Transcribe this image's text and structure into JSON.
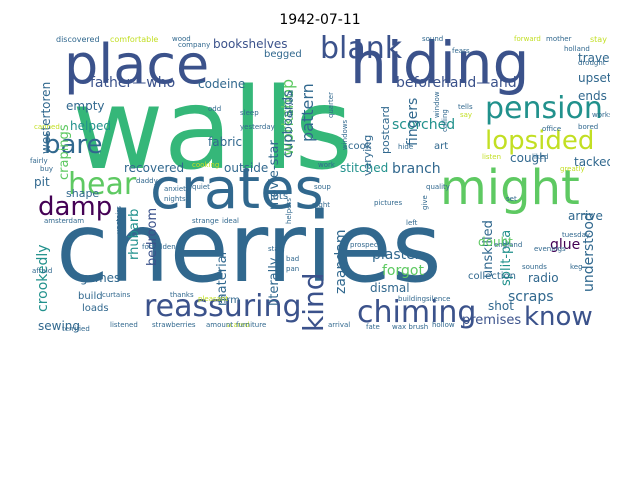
{
  "title": "1942-07-11",
  "words": [
    {
      "t": "walls",
      "c": "#35b779"
    },
    {
      "t": "cherries",
      "c": "#31688e"
    },
    {
      "t": "crates",
      "c": "#31688e"
    },
    {
      "t": "might",
      "c": "#5ec962"
    },
    {
      "t": "hiding",
      "c": "#3b528b"
    },
    {
      "t": "place",
      "c": "#3b528b"
    },
    {
      "t": "reassuring",
      "c": "#3b528b"
    },
    {
      "t": "chiming",
      "c": "#3b528b"
    },
    {
      "t": "pension",
      "c": "#21918c"
    },
    {
      "t": "blank",
      "c": "#3b528b"
    },
    {
      "t": "lopsided",
      "c": "#c2df23"
    },
    {
      "t": "hear",
      "c": "#5ec962"
    },
    {
      "t": "bare",
      "c": "#31688e"
    },
    {
      "t": "damp",
      "c": "#440154"
    },
    {
      "t": "know",
      "c": "#3b528b"
    },
    {
      "t": "kind",
      "c": "#3b528b"
    },
    {
      "t": "father—who",
      "c": "#3b528b"
    },
    {
      "t": "beforehand—and",
      "c": "#3b528b"
    },
    {
      "t": "workshop",
      "c": "#5ec962"
    },
    {
      "t": "pattern",
      "c": "#31688e"
    },
    {
      "t": "scorched",
      "c": "#21918c"
    },
    {
      "t": "branch",
      "c": "#31688e"
    },
    {
      "t": "fingers",
      "c": "#31688e"
    },
    {
      "t": "glue",
      "c": "#440154"
    },
    {
      "t": "understood",
      "c": "#31688e"
    },
    {
      "t": "scraps",
      "c": "#31688e"
    },
    {
      "t": "forgot",
      "c": "#5ec962"
    },
    {
      "t": "plaster",
      "c": "#31688e"
    },
    {
      "t": "zaandam",
      "c": "#31688e"
    },
    {
      "t": "crookedly",
      "c": "#21918c"
    },
    {
      "t": "movie-star",
      "c": "#31688e"
    },
    {
      "t": "cupboards",
      "c": "#31688e"
    },
    {
      "t": "bedroom",
      "c": "#3b528b"
    },
    {
      "t": "rhubarb",
      "c": "#21918c"
    },
    {
      "t": "material",
      "c": "#31688e"
    },
    {
      "t": "literally",
      "c": "#31688e"
    },
    {
      "t": "unskilled",
      "c": "#31688e"
    },
    {
      "t": "split-pea",
      "c": "#21918c"
    },
    {
      "t": "crapings",
      "c": "#5ec962"
    },
    {
      "t": "helped",
      "c": "#21918c"
    },
    {
      "t": "westertoren",
      "c": "#31688e"
    },
    {
      "t": "empty",
      "c": "#31688e"
    },
    {
      "t": "bookshelves",
      "c": "#3b528b"
    },
    {
      "t": "codeine",
      "c": "#31688e"
    },
    {
      "t": "fabric",
      "c": "#31688e"
    },
    {
      "t": "recovered",
      "c": "#31688e"
    },
    {
      "t": "outside",
      "c": "#31688e"
    },
    {
      "t": "stitched",
      "c": "#21918c"
    },
    {
      "t": "postcard",
      "c": "#31688e"
    },
    {
      "t": "varying",
      "c": "#31688e"
    },
    {
      "t": "travel",
      "c": "#31688e"
    },
    {
      "t": "upsets",
      "c": "#31688e"
    },
    {
      "t": "ends",
      "c": "#31688e"
    },
    {
      "t": "cough",
      "c": "#31688e"
    },
    {
      "t": "tacked",
      "c": "#31688e"
    },
    {
      "t": "arrive",
      "c": "#31688e"
    },
    {
      "t": "doubt",
      "c": "#5ec962"
    },
    {
      "t": "radio",
      "c": "#31688e"
    },
    {
      "t": "shot",
      "c": "#31688e"
    },
    {
      "t": "premises",
      "c": "#3b528b"
    },
    {
      "t": "dismal",
      "c": "#31688e"
    },
    {
      "t": "collection",
      "c": "#31688e"
    },
    {
      "t": "sewing",
      "c": "#31688e"
    },
    {
      "t": "doses",
      "c": "#21918c"
    },
    {
      "t": "games",
      "c": "#31688e"
    },
    {
      "t": "loads",
      "c": "#31688e"
    },
    {
      "t": "build",
      "c": "#31688e"
    },
    {
      "t": "firm",
      "c": "#31688e"
    },
    {
      "t": "shape",
      "c": "#31688e"
    },
    {
      "t": "pit",
      "c": "#31688e"
    },
    {
      "t": "cook",
      "c": "#31688e"
    },
    {
      "t": "art",
      "c": "#31688e"
    },
    {
      "t": "begged",
      "c": "#31688e"
    },
    {
      "t": "lots",
      "c": "#31688e"
    },
    {
      "t": "stay",
      "c": "#c2df23"
    },
    {
      "t": "discovered",
      "c": "#31688e"
    },
    {
      "t": "comfortable",
      "c": "#c2df23"
    },
    {
      "t": "wood",
      "c": "#31688e"
    },
    {
      "t": "company",
      "c": "#31688e"
    },
    {
      "t": "sound",
      "c": "#31688e"
    },
    {
      "t": "forward",
      "c": "#c2df23"
    },
    {
      "t": "mother",
      "c": "#31688e"
    },
    {
      "t": "works",
      "c": "#31688e"
    },
    {
      "t": "sleep",
      "c": "#31688e"
    },
    {
      "t": "nervous",
      "c": "#31688e"
    },
    {
      "t": "quarter",
      "c": "#31688e"
    },
    {
      "t": "window",
      "c": "#31688e"
    },
    {
      "t": "calling",
      "c": "#31688e"
    },
    {
      "t": "hide",
      "c": "#31688e"
    },
    {
      "t": "windows",
      "c": "#31688e"
    },
    {
      "t": "tells",
      "c": "#31688e"
    },
    {
      "t": "say",
      "c": "#c2df23"
    },
    {
      "t": "office",
      "c": "#31688e"
    },
    {
      "t": "bored",
      "c": "#31688e"
    },
    {
      "t": "listen",
      "c": "#c2df23"
    },
    {
      "t": "liked",
      "c": "#31688e"
    },
    {
      "t": "greatly",
      "c": "#c2df23"
    },
    {
      "t": "fairly",
      "c": "#31688e"
    },
    {
      "t": "daddy",
      "c": "#31688e"
    },
    {
      "t": "anxiety",
      "c": "#31688e"
    },
    {
      "t": "quiet",
      "c": "#31688e"
    },
    {
      "t": "nights",
      "c": "#31688e"
    },
    {
      "t": "cooking",
      "c": "#c2df23"
    },
    {
      "t": "work",
      "c": "#31688e"
    },
    {
      "t": "soup",
      "c": "#31688e"
    },
    {
      "t": "quality",
      "c": "#31688e"
    },
    {
      "t": "give",
      "c": "#31688e"
    },
    {
      "t": "set",
      "c": "#31688e"
    },
    {
      "t": "pictures",
      "c": "#31688e"
    },
    {
      "t": "night",
      "c": "#31688e"
    },
    {
      "t": "helpers",
      "c": "#31688e"
    },
    {
      "t": "amsterdam",
      "c": "#31688e"
    },
    {
      "t": "ideal",
      "c": "#31688e"
    },
    {
      "t": "strange",
      "c": "#31688e"
    },
    {
      "t": "upstairs",
      "c": "#31688e"
    },
    {
      "t": "forbidden",
      "c": "#31688e"
    },
    {
      "t": "start",
      "c": "#31688e"
    },
    {
      "t": "bad",
      "c": "#31688e"
    },
    {
      "t": "pan",
      "c": "#31688e"
    },
    {
      "t": "prospect",
      "c": "#31688e"
    },
    {
      "t": "england",
      "c": "#31688e"
    },
    {
      "t": "evenings",
      "c": "#31688e"
    },
    {
      "t": "tuesday",
      "c": "#31688e"
    },
    {
      "t": "sounds",
      "c": "#31688e"
    },
    {
      "t": "keg",
      "c": "#31688e"
    },
    {
      "t": "curtains",
      "c": "#31688e"
    },
    {
      "t": "thanks",
      "c": "#31688e"
    },
    {
      "t": "scared",
      "c": "#c2df23"
    },
    {
      "t": "building",
      "c": "#31688e"
    },
    {
      "t": "silence",
      "c": "#31688e"
    },
    {
      "t": "terrified",
      "c": "#31688e"
    },
    {
      "t": "listened",
      "c": "#31688e"
    },
    {
      "t": "strawberries",
      "c": "#31688e"
    },
    {
      "t": "amount",
      "c": "#31688e"
    },
    {
      "t": "furniture",
      "c": "#31688e"
    },
    {
      "t": "arrival",
      "c": "#31688e"
    },
    {
      "t": "fate",
      "c": "#31688e"
    },
    {
      "t": "wax brush",
      "c": "#31688e"
    },
    {
      "t": "hollow",
      "c": "#31688e"
    },
    {
      "t": "afraid",
      "c": "#31688e"
    },
    {
      "t": "canned",
      "c": "#c2df23"
    },
    {
      "t": "buy",
      "c": "#31688e"
    },
    {
      "t": "fears",
      "c": "#31688e"
    },
    {
      "t": "odd",
      "c": "#31688e"
    },
    {
      "t": "left",
      "c": "#31688e"
    },
    {
      "t": "yesterday",
      "c": "#31688e"
    },
    {
      "t": "pleasant",
      "c": "#c2df23"
    },
    {
      "t": "holland",
      "c": "#31688e"
    },
    {
      "t": "drought",
      "c": "#31688e"
    }
  ]
}
